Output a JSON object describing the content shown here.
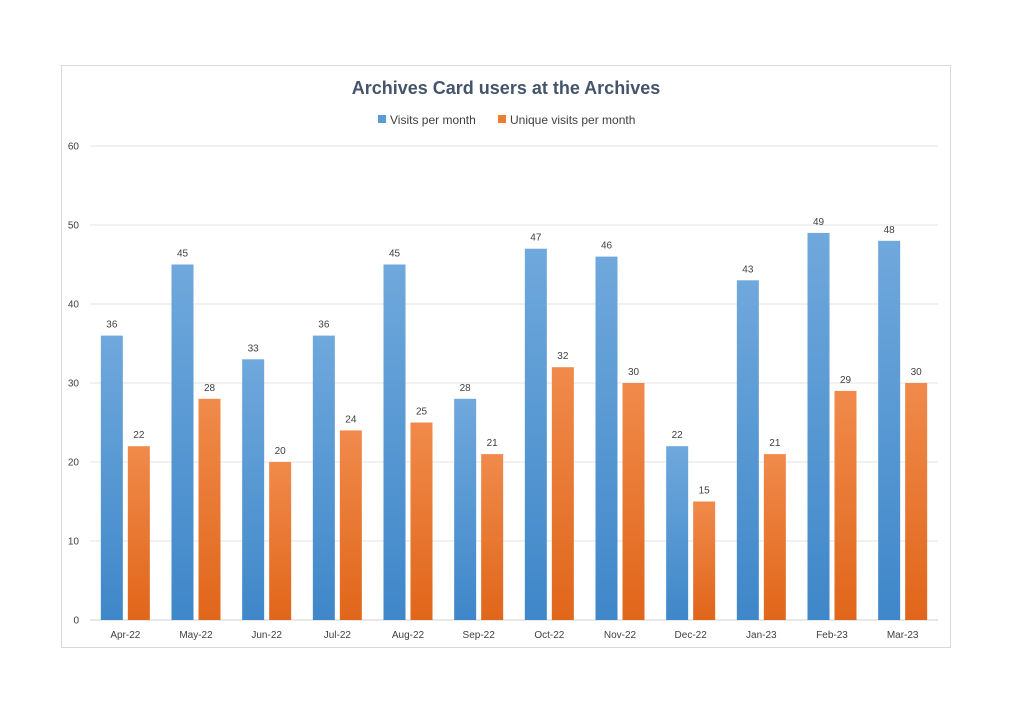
{
  "chart_data": {
    "type": "bar",
    "title": "Archives Card users at the Archives",
    "categories": [
      "Apr-22",
      "May-22",
      "Jun-22",
      "Jul-22",
      "Aug-22",
      "Sep-22",
      "Oct-22",
      "Nov-22",
      "Dec-22",
      "Jan-23",
      "Feb-23",
      "Mar-23"
    ],
    "series": [
      {
        "name": "Visits per month",
        "color": "#5b9bd5",
        "values": [
          36,
          45,
          33,
          36,
          45,
          28,
          47,
          46,
          22,
          43,
          49,
          48
        ]
      },
      {
        "name": "Unique visits per month",
        "color": "#ed7d31",
        "values": [
          22,
          28,
          20,
          24,
          25,
          21,
          32,
          30,
          15,
          21,
          29,
          30
        ]
      }
    ],
    "ylim": [
      0,
      60
    ],
    "yticks": [
      0,
      10,
      20,
      30,
      40,
      50,
      60
    ],
    "grid": true,
    "legend": "top-center",
    "xlabel": "",
    "ylabel": ""
  }
}
